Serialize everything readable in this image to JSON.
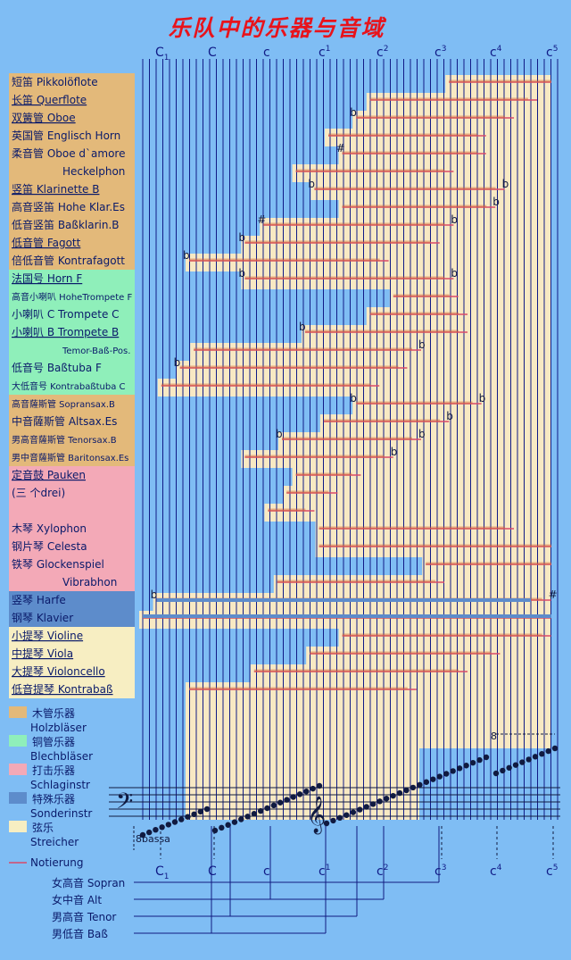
{
  "title": "乐队中的乐器与音域",
  "top_notes": [
    {
      "label": "C",
      "sub": "1",
      "pos": "sub"
    },
    {
      "label": "C",
      "sub": "",
      "pos": ""
    },
    {
      "label": "c",
      "sub": "",
      "pos": ""
    },
    {
      "label": "c",
      "sub": "1",
      "pos": "sup"
    },
    {
      "label": "c",
      "sub": "2",
      "pos": "sup"
    },
    {
      "label": "c",
      "sub": "3",
      "pos": "sup"
    },
    {
      "label": "c",
      "sub": "4",
      "pos": "sup"
    },
    {
      "label": "c",
      "sub": "5",
      "pos": "sup"
    }
  ],
  "colors": {
    "background": "#7fbdf4",
    "wood": "#e3b97a",
    "brass": "#8fefba",
    "percussion": "#f3a9b7",
    "special": "#5d8ccb",
    "strings": "#f7eec2",
    "chart": "#f8e9c3",
    "chart_line": "#101a86",
    "range_line": "#d94a6a",
    "notation_line": "#d06232",
    "title": "#e8131b"
  },
  "instruments": [
    {
      "cn": "短笛",
      "de": "Pikkolöflote",
      "group": "wood",
      "underline": false,
      "lo": 53,
      "hi": 92,
      "lo_line": 66,
      "acc": ""
    },
    {
      "cn": "长笛",
      "de": "Querflote",
      "group": "wood",
      "underline": true,
      "lo": 49,
      "hi": 85,
      "lo_line": 49,
      "acc": ""
    },
    {
      "cn": "双簧管",
      "de": "Oboe",
      "group": "wood",
      "underline": true,
      "lo": 46,
      "hi": 80,
      "lo_line": 46,
      "acc": "b"
    },
    {
      "cn": "英国管",
      "de": "Englisch Horn",
      "group": "wood",
      "underline": false,
      "lo": 40,
      "hi": 74,
      "lo_line": 40,
      "acc": ""
    },
    {
      "cn": "柔音管",
      "de": "Oboe d`amore",
      "group": "wood",
      "underline": false,
      "lo": 42,
      "hi": 74,
      "lo_line": 43,
      "acc": "#"
    },
    {
      "cn": "",
      "de": "Heckelphon",
      "group": "wood",
      "underline": false,
      "lo": 33,
      "hi": 67,
      "lo_line": 33,
      "acc": ""
    },
    {
      "cn": "竖笛",
      "de": "Klarinette B",
      "group": "wood",
      "underline": true,
      "lo": 37,
      "hi": 78,
      "lo_line": 37,
      "acc": "b",
      "acc_hi": "b"
    },
    {
      "cn": "高音竖笛",
      "de": "Hohe Klar.Es",
      "group": "wood",
      "underline": false,
      "lo": 43,
      "hi": 76,
      "lo_line": 43,
      "acc": "",
      "acc_hi": "b"
    },
    {
      "cn": "低音竖笛",
      "de": "Baßklarin.B",
      "group": "wood",
      "underline": false,
      "lo": 26,
      "hi": 67,
      "lo_line": 26,
      "acc": "#",
      "acc_hi": "b"
    },
    {
      "cn": "低音管",
      "de": "Fagott",
      "group": "wood",
      "underline": true,
      "lo": 22,
      "hi": 64,
      "lo_line": 22,
      "acc": "b"
    },
    {
      "cn": "倍低音管",
      "de": "Kontrafagott",
      "group": "wood",
      "underline": false,
      "lo": 10,
      "hi": 53,
      "lo_line": 10,
      "acc": "b"
    },
    {
      "cn": "法国号",
      "de": "Horn F",
      "group": "brass",
      "underline": true,
      "lo": 22,
      "hi": 67,
      "lo_line": 22,
      "acc": "b",
      "acc_hi": "b"
    },
    {
      "cn": "高音小喇叭",
      "de": "HoheTrompete F",
      "group": "brass",
      "underline": false,
      "lo": 53,
      "hi": 68,
      "lo_line": 54,
      "acc": "",
      "small": true
    },
    {
      "cn": "小喇叭",
      "de": "C  Trompete C",
      "group": "brass",
      "underline": false,
      "lo": 48,
      "hi": 70,
      "lo_line": 49,
      "acc": ""
    },
    {
      "cn": "小喇叭",
      "de": "B  Trompete B",
      "group": "brass",
      "underline": true,
      "lo": 34,
      "hi": 70,
      "lo_line": 35,
      "acc": "b"
    },
    {
      "cn": "",
      "de": "Temor-Baß-Pos.",
      "group": "brass",
      "underline": false,
      "lo": 11,
      "hi": 60,
      "lo_line": 11,
      "acc": "",
      "acc_hi": "b",
      "small": true
    },
    {
      "cn": "低音号",
      "de": "Baßtuba F",
      "group": "brass",
      "underline": false,
      "lo": 8,
      "hi": 57,
      "lo_line": 8,
      "acc": "b"
    },
    {
      "cn": "大低音号",
      "de": "Kontrabaßtuba C",
      "group": "brass",
      "underline": false,
      "lo": 4,
      "hi": 51,
      "lo_line": 4,
      "acc": "",
      "small": true
    },
    {
      "cn": "高音薩斯管",
      "de": "Sopransax.B",
      "group": "wood",
      "underline": false,
      "lo": 46,
      "hi": 73,
      "lo_line": 46,
      "acc": "b",
      "acc_hi": "b",
      "small": true
    },
    {
      "cn": "中音薩斯管",
      "de": "Altsax.Es",
      "group": "wood",
      "underline": false,
      "lo": 39,
      "hi": 66,
      "lo_line": 39,
      "acc": "",
      "acc_hi": "b"
    },
    {
      "cn": "男高音薩斯管",
      "de": "Tenorsax.B",
      "group": "wood",
      "underline": false,
      "lo": 30,
      "hi": 60,
      "lo_line": 30,
      "acc": "b",
      "acc_hi": "b",
      "small": true
    },
    {
      "cn": "男中音薩斯管",
      "de": "Baritonsax.Es",
      "group": "wood",
      "underline": false,
      "lo": 22,
      "hi": 54,
      "lo_line": 22,
      "acc": "",
      "acc_hi": "b",
      "small": true
    },
    {
      "cn": "定音鼓",
      "de": "Pauken",
      "group": "percussion",
      "underline": true,
      "lo": 33,
      "hi": 47,
      "lo_line": 33,
      "acc": ""
    },
    {
      "cn": "(三 个drei)",
      "de": "",
      "group": "percussion",
      "underline": false,
      "lo": 31,
      "hi": 42,
      "lo_line": 31,
      "acc": ""
    },
    {
      "cn": "",
      "de": "",
      "group": "percussion",
      "underline": false,
      "lo": 27,
      "hi": 37,
      "lo_line": 27,
      "acc": ""
    },
    {
      "cn": "木琴",
      "de": "Xylophon",
      "group": "percussion",
      "underline": false,
      "lo": 38,
      "hi": 80,
      "lo_line": 38,
      "acc": ""
    },
    {
      "cn": "钢片琴",
      "de": "Celesta",
      "group": "percussion",
      "underline": false,
      "lo": 38,
      "hi": 90,
      "lo_line": 38,
      "acc": ""
    },
    {
      "cn": "铁琴",
      "de": "Glockenspiel",
      "group": "percussion",
      "underline": false,
      "lo": 46,
      "hi": 90,
      "lo_line": 61,
      "acc": ""
    },
    {
      "cn": "",
      "de": "Vibrabhon",
      "group": "percussion",
      "underline": false,
      "lo": 29,
      "hi": 65,
      "lo_line": 29,
      "acc": ""
    },
    {
      "cn": "竖琴",
      "de": "Harfe",
      "group": "special",
      "underline": false,
      "lo": 3,
      "hi": 88,
      "lo_line": 3,
      "acc": "b",
      "acc_hi": "#"
    },
    {
      "cn": "钢琴",
      "de": "Klavier",
      "group": "special",
      "underline": false,
      "lo": 0,
      "hi": 88,
      "lo_line": 0,
      "acc": ""
    },
    {
      "cn": "小提琴",
      "de": "Violine",
      "group": "strings",
      "underline": true,
      "lo": 43,
      "hi": 88,
      "lo_line": 43,
      "acc": ""
    },
    {
      "cn": "中提琴",
      "de": "Viola",
      "group": "strings",
      "underline": true,
      "lo": 36,
      "hi": 77,
      "lo_line": 36,
      "acc": ""
    },
    {
      "cn": "大提琴",
      "de": "Violoncello",
      "group": "strings",
      "underline": true,
      "lo": 24,
      "hi": 70,
      "lo_line": 24,
      "acc": ""
    },
    {
      "cn": "低音提琴",
      "de": "Kontrabaß",
      "group": "strings",
      "underline": true,
      "lo": 10,
      "hi": 59,
      "lo_line": 10,
      "acc": ""
    }
  ],
  "legend": [
    {
      "cn": "木管乐器",
      "de": "Holzbläser",
      "key": "wood"
    },
    {
      "cn": "铜管乐器",
      "de": "Blechbläser",
      "key": "brass"
    },
    {
      "cn": "打击乐器",
      "de": "Schlaginstr",
      "key": "percussion"
    },
    {
      "cn": "特殊乐器",
      "de": "Sonderinstr",
      "key": "special"
    },
    {
      "cn": "弦乐",
      "de": "Streicher",
      "key": "strings"
    }
  ],
  "notation_label": "Notierung",
  "bassa_label": "8bassa",
  "alta_label": "8",
  "voices": [
    {
      "cn": "女高音",
      "de": "Sopran"
    },
    {
      "cn": "女中音",
      "de": "Alt"
    },
    {
      "cn": "男高音",
      "de": "Tenor"
    },
    {
      "cn": "男低音",
      "de": "Baß"
    }
  ]
}
